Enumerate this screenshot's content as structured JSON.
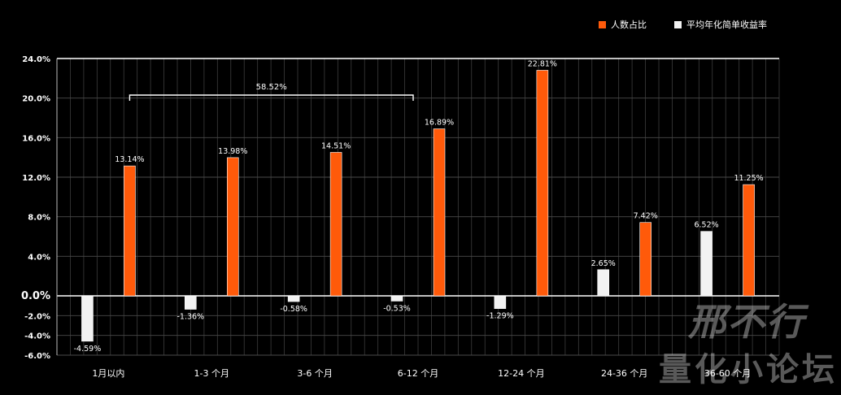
{
  "chart_data": {
    "type": "bar",
    "categories": [
      "1月以内",
      "1-3 个月",
      "3-6 个月",
      "6-12 个月",
      "12-24 个月",
      "24-36 个月",
      "36-60 个月"
    ],
    "series": [
      {
        "name": "平均年化简单收益率",
        "color": "#f2f2f2",
        "values": [
          -4.59,
          -1.36,
          -0.58,
          -0.53,
          -1.29,
          2.65,
          6.52
        ],
        "labels": [
          "-4.59%",
          "-1.36%",
          "-0.58%",
          "-0.53%",
          "-1.29%",
          "2.65%",
          "6.52%"
        ]
      },
      {
        "name": "人数占比",
        "color": "#ff5a0a",
        "values": [
          13.14,
          13.98,
          14.51,
          16.89,
          22.81,
          7.42,
          11.25
        ],
        "labels": [
          "13.14%",
          "13.98%",
          "14.51%",
          "16.89%",
          "22.81%",
          "7.42%",
          "11.25%"
        ]
      }
    ],
    "ylim": [
      -6,
      24
    ],
    "yticks": [
      -6,
      -4,
      -2,
      0,
      4,
      8,
      12,
      16,
      20,
      24
    ],
    "ytick_labels": [
      "-6.0%",
      "-4.0%",
      "-2.0%",
      "0.0%",
      "4.0%",
      "8.0%",
      "12.0%",
      "16.0%",
      "20.0%",
      "24.0%"
    ],
    "grid": true,
    "legend_position": "top-right",
    "annotation": {
      "text": "58.52%",
      "from_category": 0,
      "to_category": 3
    }
  },
  "legend": {
    "items": [
      {
        "label": "人数占比",
        "color": "#ff5a0a"
      },
      {
        "label": "平均年化简单收益率",
        "color": "#f2f2f2"
      }
    ]
  },
  "watermark": {
    "line1": "邢不行",
    "line2": "量化小论坛"
  }
}
